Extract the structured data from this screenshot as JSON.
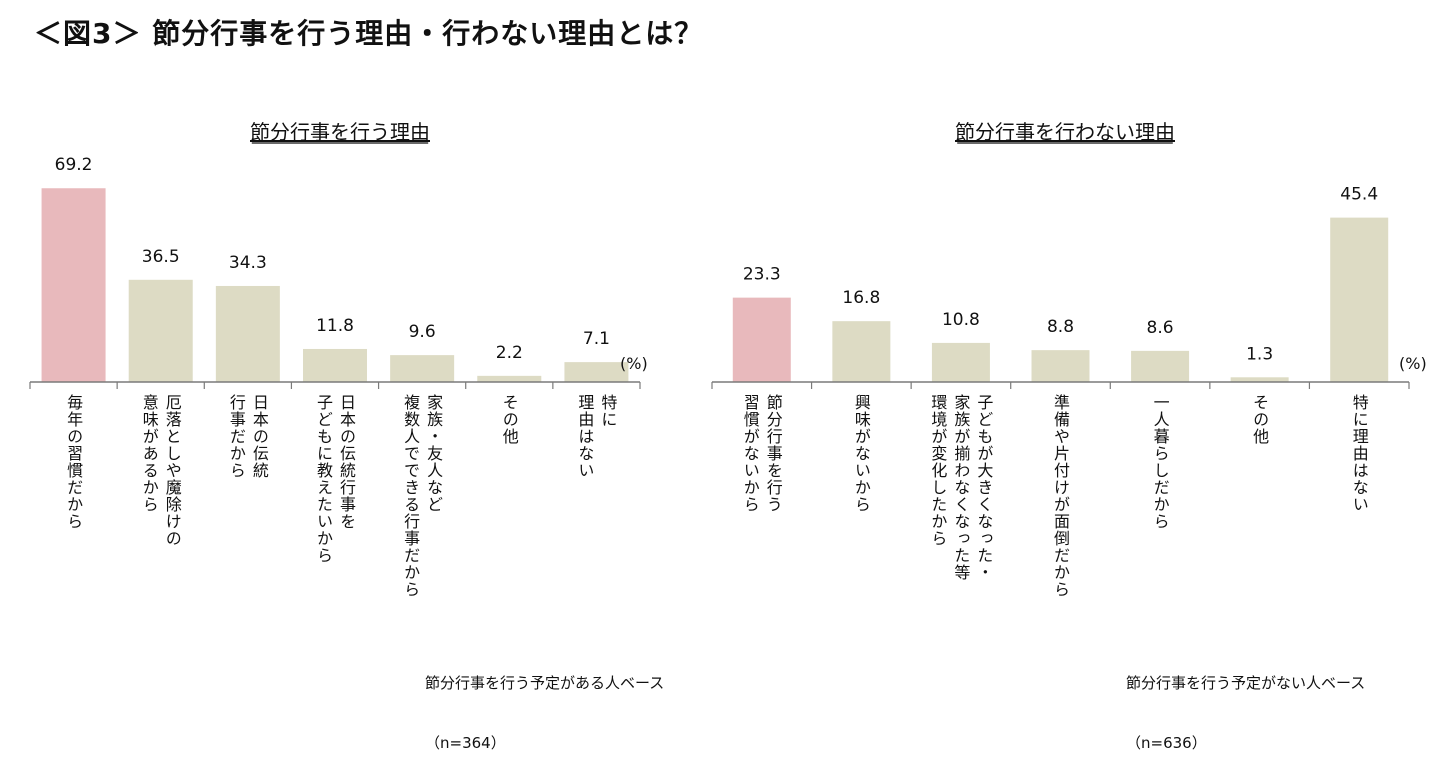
{
  "page_title": "＜図3＞ 節分行事を行う理由・行わない理由とは？",
  "colors": {
    "highlight": "#e8b9bc",
    "bar": "#dddbc4",
    "axis": "#7a7a7a"
  },
  "chart_data": [
    {
      "type": "bar",
      "title": "節分行事を行う理由",
      "unit_label": "(%)",
      "categories": [
        "毎年の習慣だから",
        "厄落としや魔除けの意味があるから",
        "日本の伝統行事だから",
        "日本の伝統行事を子どもに教えたいから",
        "家族・友人など複数人でできる行事だから",
        "その他",
        "特に理由はない"
      ],
      "category_lines": [
        [
          "毎年の習慣だから"
        ],
        [
          "厄落としや魔除けの",
          "意味があるから"
        ],
        [
          "日本の伝統",
          "行事だから"
        ],
        [
          "日本の伝統行事を",
          "子どもに教えたいから"
        ],
        [
          "家族・友人など",
          "複数人でできる行事だから"
        ],
        [
          "その他"
        ],
        [
          "特に",
          "理由はない"
        ]
      ],
      "values": [
        69.2,
        36.5,
        34.3,
        11.8,
        9.6,
        2.2,
        7.1
      ],
      "value_labels": [
        "69.2",
        "36.5",
        "34.3",
        "11.8",
        "9.6",
        "2.2",
        "7.1"
      ],
      "highlight_index": 0,
      "ylim": [
        0,
        75
      ],
      "base_note": [
        "節分行事を行う予定がある人ベース",
        "（n=364）"
      ]
    },
    {
      "type": "bar",
      "title": "節分行事を行わない理由",
      "unit_label": "(%)",
      "categories": [
        "節分行事を行う習慣がないから",
        "興味がないから",
        "子どもが大きくなった・家族が揃わなくなった等環境が変化したから",
        "準備や片付けが面倒だから",
        "一人暮らしだから",
        "その他",
        "特に理由はない"
      ],
      "category_lines": [
        [
          "節分行事を行う",
          "習慣がないから"
        ],
        [
          "興味がないから"
        ],
        [
          "子どもが大きくなった・",
          "家族が揃わなくなった等",
          "環境が変化したから"
        ],
        [
          "準備や片付けが面倒だから"
        ],
        [
          "一人暮らしだから"
        ],
        [
          "その他"
        ],
        [
          "特に理由はない"
        ]
      ],
      "values": [
        23.3,
        16.8,
        10.8,
        8.8,
        8.6,
        1.3,
        45.4
      ],
      "value_labels": [
        "23.3",
        "16.8",
        "10.8",
        "8.8",
        "8.6",
        "1.3",
        "45.4"
      ],
      "highlight_index": 0,
      "ylim": [
        0,
        58
      ],
      "base_note": [
        "節分行事を行う予定がない人ベース",
        "（n=636）"
      ]
    }
  ]
}
